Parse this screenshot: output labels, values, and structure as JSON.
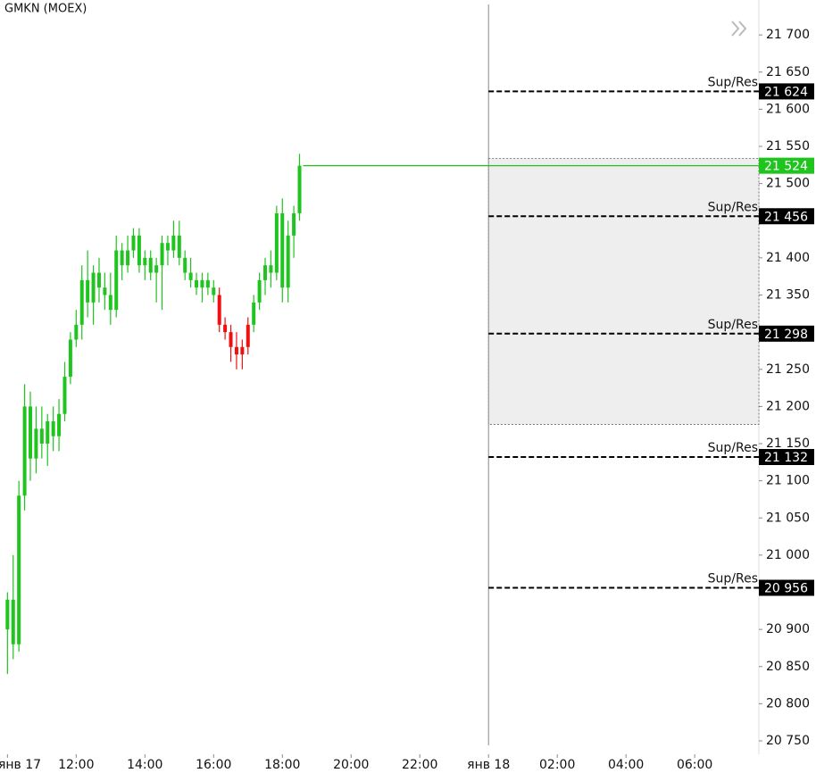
{
  "chart_data": {
    "type": "candlestick",
    "title": "GMKN (MOEX)",
    "x": [
      600,
      610,
      620,
      630,
      640,
      650,
      660,
      670,
      680,
      690,
      700,
      710,
      720,
      730,
      740,
      750,
      760,
      770,
      780,
      790,
      800,
      810,
      820,
      830,
      840,
      850,
      860,
      870,
      880,
      890,
      900,
      910,
      920,
      930,
      940,
      950,
      960,
      970,
      980,
      990,
      1000,
      1010,
      1020,
      1030,
      1040,
      1050,
      1060,
      1070,
      1080,
      1090,
      1100,
      1110
    ],
    "open": [
      20900,
      20940,
      20880,
      21080,
      21200,
      21130,
      21170,
      21150,
      21180,
      21160,
      21190,
      21240,
      21290,
      21310,
      21370,
      21340,
      21380,
      21360,
      21350,
      21330,
      21410,
      21390,
      21410,
      21430,
      21390,
      21400,
      21380,
      21390,
      21420,
      21410,
      21430,
      21400,
      21380,
      21370,
      21360,
      21370,
      21360,
      21350,
      21310,
      21300,
      21280,
      21270,
      21280,
      21310,
      21340,
      21370,
      21390,
      21380,
      21460,
      21360,
      21430,
      21460
    ],
    "high": [
      20950,
      21000,
      21100,
      21230,
      21220,
      21200,
      21200,
      21190,
      21200,
      21210,
      21260,
      21300,
      21330,
      21390,
      21410,
      21390,
      21400,
      21380,
      21380,
      21430,
      21420,
      21430,
      21440,
      21440,
      21410,
      21410,
      21400,
      21430,
      21430,
      21450,
      21450,
      21410,
      21400,
      21380,
      21380,
      21380,
      21370,
      21360,
      21320,
      21310,
      21300,
      21290,
      21320,
      21350,
      21380,
      21400,
      21410,
      21470,
      21480,
      21450,
      21470,
      21540
    ],
    "low": [
      20840,
      20860,
      20870,
      21060,
      21100,
      21110,
      21130,
      21120,
      21140,
      21140,
      21180,
      21230,
      21280,
      21290,
      21320,
      21310,
      21340,
      21330,
      21310,
      21320,
      21370,
      21380,
      21400,
      21380,
      21370,
      21370,
      21340,
      21330,
      21390,
      21400,
      21390,
      21370,
      21360,
      21350,
      21340,
      21350,
      21340,
      21300,
      21290,
      21260,
      21250,
      21250,
      21270,
      21300,
      21330,
      21350,
      21360,
      21370,
      21340,
      21340,
      21400,
      21450
    ],
    "close": [
      20940,
      20880,
      21080,
      21200,
      21130,
      21170,
      21150,
      21180,
      21160,
      21190,
      21240,
      21290,
      21310,
      21370,
      21340,
      21380,
      21360,
      21350,
      21330,
      21410,
      21390,
      21410,
      21430,
      21390,
      21400,
      21380,
      21390,
      21420,
      21410,
      21430,
      21400,
      21380,
      21370,
      21360,
      21370,
      21360,
      21350,
      21310,
      21300,
      21280,
      21270,
      21280,
      21310,
      21340,
      21370,
      21390,
      21380,
      21460,
      21360,
      21430,
      21460,
      21524
    ],
    "colors": [
      "#1fc41f",
      "#1fc41f",
      "#1fc41f",
      "#1fc41f",
      "#1fc41f",
      "#1fc41f",
      "#1fc41f",
      "#1fc41f",
      "#1fc41f",
      "#1fc41f",
      "#1fc41f",
      "#1fc41f",
      "#1fc41f",
      "#1fc41f",
      "#1fc41f",
      "#1fc41f",
      "#1fc41f",
      "#1fc41f",
      "#1fc41f",
      "#1fc41f",
      "#1fc41f",
      "#1fc41f",
      "#1fc41f",
      "#1fc41f",
      "#1fc41f",
      "#1fc41f",
      "#1fc41f",
      "#1fc41f",
      "#1fc41f",
      "#1fc41f",
      "#1fc41f",
      "#1fc41f",
      "#1fc41f",
      "#1fc41f",
      "#1fc41f",
      "#1fc41f",
      "#1fc41f",
      "#ee1111",
      "#ee1111",
      "#ee1111",
      "#ee1111",
      "#ee1111",
      "#ee1111",
      "#1fc41f",
      "#1fc41f",
      "#1fc41f",
      "#1fc41f",
      "#1fc41f",
      "#1fc41f",
      "#1fc41f",
      "#1fc41f",
      "#1fc41f"
    ],
    "xlim": [
      587,
      1912
    ],
    "xticks": [
      {
        "value": 600,
        "label": "янв 17"
      },
      {
        "value": 720,
        "label": "12:00"
      },
      {
        "value": 840,
        "label": "14:00"
      },
      {
        "value": 960,
        "label": "16:00"
      },
      {
        "value": 1080,
        "label": "18:00"
      },
      {
        "value": 1200,
        "label": "20:00"
      },
      {
        "value": 1320,
        "label": "22:00"
      },
      {
        "value": 1440,
        "label": "янв 18"
      },
      {
        "value": 1560,
        "label": "02:00"
      },
      {
        "value": 1680,
        "label": "04:00"
      },
      {
        "value": 1800,
        "label": "06:00"
      }
    ],
    "ylim": [
      20732,
      21747
    ],
    "yticks": [
      {
        "value": 21700,
        "label": "21 700"
      },
      {
        "value": 21650,
        "label": "21 650"
      },
      {
        "value": 21600,
        "label": "21 600"
      },
      {
        "value": 21550,
        "label": "21 550"
      },
      {
        "value": 21500,
        "label": "21 500"
      },
      {
        "value": 21400,
        "label": "21 400"
      },
      {
        "value": 21350,
        "label": "21 350"
      },
      {
        "value": 21250,
        "label": "21 250"
      },
      {
        "value": 21200,
        "label": "21 200"
      },
      {
        "value": 21150,
        "label": "21 150"
      },
      {
        "value": 21100,
        "label": "21 100"
      },
      {
        "value": 21050,
        "label": "21 050"
      },
      {
        "value": 21000,
        "label": "21 000"
      },
      {
        "value": 20900,
        "label": "20 900"
      },
      {
        "value": 20850,
        "label": "20 850"
      },
      {
        "value": 20800,
        "label": "20 800"
      },
      {
        "value": 20750,
        "label": "20 750"
      }
    ],
    "last_price": {
      "value": 21524,
      "label": "21 524",
      "color": "#1fc41f"
    },
    "levels": [
      {
        "value": 21624,
        "label": "21 624",
        "text": "Sup/Res"
      },
      {
        "value": 21456,
        "label": "21 456",
        "text": "Sup/Res"
      },
      {
        "value": 21298,
        "label": "21 298",
        "text": "Sup/Res"
      },
      {
        "value": 21132,
        "label": "21 132",
        "text": "Sup/Res"
      },
      {
        "value": 20956,
        "label": "20 956",
        "text": "Sup/Res"
      }
    ],
    "zone": [
      21176,
      21534
    ]
  }
}
